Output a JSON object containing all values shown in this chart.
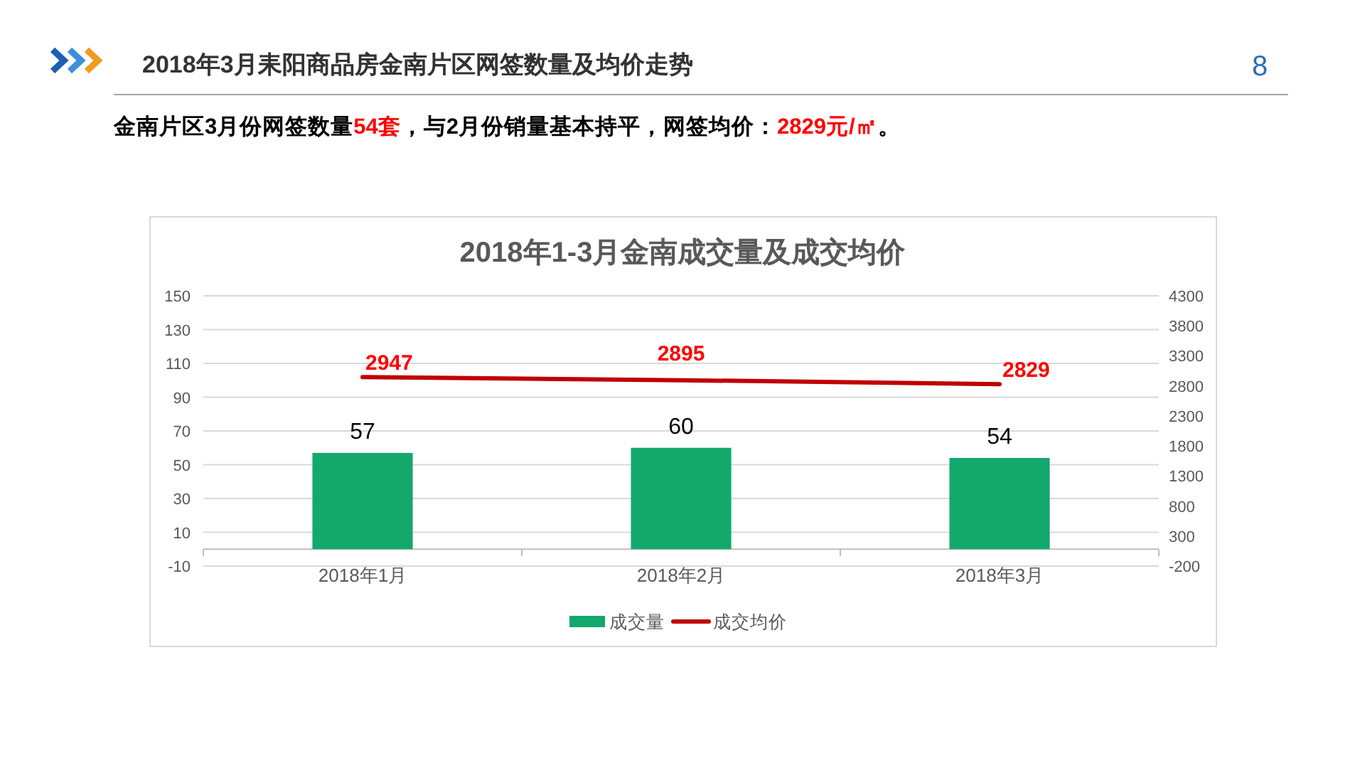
{
  "chart_data": {
    "type": "bar",
    "title": "2018年1-3月金南成交量及成交均价",
    "categories": [
      "2018年1月",
      "2018年2月",
      "2018年3月"
    ],
    "series": [
      {
        "name": "成交量",
        "color": "#13a86c",
        "values": [
          57,
          60,
          54
        ]
      },
      {
        "name": "成交均价",
        "type": "line",
        "axis": "y2",
        "color": "#c00000",
        "values": [
          2947,
          2895,
          2829
        ]
      }
    ],
    "ylim": [
      -10,
      150
    ],
    "yticks": [
      -10,
      10,
      30,
      50,
      70,
      90,
      110,
      130,
      150
    ],
    "y2lim": [
      -200,
      4300
    ],
    "y2ticks": [
      -200,
      300,
      800,
      1300,
      1800,
      2300,
      2800,
      3300,
      3800,
      4300
    ],
    "grid": "y",
    "legend": "bottom",
    "data_labels": true,
    "annotations": [
      "2018年3月耒阳商品房金南片区网签数量及均价走势",
      "8",
      "金南片区3月份网签数量",
      "54套",
      "，与2月份销量基本持平，网签均价：",
      "2829元/㎡",
      "。"
    ]
  }
}
